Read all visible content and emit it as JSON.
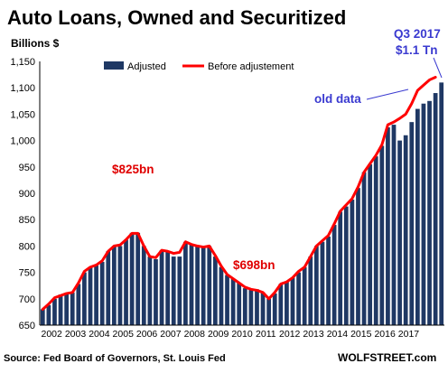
{
  "chart_data": {
    "type": "bar",
    "title": "Auto Loans, Owned and Securitized",
    "ylabel": "Billions $",
    "xlabel": "",
    "ylim": [
      650,
      1150
    ],
    "yticks": [
      650,
      700,
      750,
      800,
      850,
      900,
      950,
      1000,
      1050,
      1100,
      1150
    ],
    "ytick_labels": [
      "650",
      "700",
      "750",
      "800",
      "850",
      "900",
      "950",
      "1,000",
      "1,050",
      "1,100",
      "1,150"
    ],
    "xtick_labels": [
      "2002",
      "2003",
      "2004",
      "2005",
      "2006",
      "2007",
      "2008",
      "2009",
      "2010",
      "2011",
      "2012",
      "2013",
      "2014",
      "2015",
      "2016",
      "2017"
    ],
    "x_start_year": 2002,
    "grid": false,
    "legend_position": "top-center",
    "series": [
      {
        "name": "Adjusted",
        "type": "bar",
        "color": "#1f3864",
        "values": [
          680,
          688,
          700,
          708,
          710,
          712,
          728,
          750,
          760,
          763,
          770,
          790,
          800,
          800,
          812,
          825,
          825,
          800,
          780,
          775,
          792,
          790,
          780,
          780,
          808,
          803,
          800,
          797,
          800,
          780,
          760,
          745,
          738,
          730,
          720,
          718,
          718,
          712,
          700,
          710,
          728,
          732,
          740,
          750,
          760,
          780,
          800,
          808,
          818,
          840,
          865,
          875,
          888,
          910,
          940,
          955,
          970,
          990,
          1025,
          1030,
          1000,
          1010,
          1035,
          1060,
          1070,
          1075,
          1090,
          1110
        ]
      },
      {
        "name": "Before adjustement",
        "type": "line",
        "color": "#ff0000",
        "values": [
          680,
          690,
          702,
          706,
          710,
          712,
          730,
          752,
          760,
          764,
          772,
          790,
          800,
          802,
          812,
          824,
          824,
          800,
          780,
          778,
          792,
          790,
          786,
          788,
          808,
          803,
          800,
          798,
          800,
          782,
          762,
          746,
          738,
          730,
          722,
          718,
          716,
          712,
          700,
          712,
          728,
          732,
          740,
          752,
          760,
          780,
          800,
          810,
          820,
          842,
          866,
          878,
          890,
          912,
          940,
          956,
          972,
          992,
          1030,
          1035,
          1042,
          1050,
          1070,
          1095,
          1105,
          1115,
          1120
        ]
      }
    ],
    "annotations": [
      {
        "text": "$825bn",
        "color": "#e00000"
      },
      {
        "text": "$698bn",
        "color": "#e00000"
      },
      {
        "text": "old data",
        "color": "#3a3ad0"
      },
      {
        "text": "Q3 2017",
        "color": "#3a3ad0"
      },
      {
        "text": "$1.1 Tn",
        "color": "#3a3ad0"
      }
    ]
  },
  "footer": {
    "source": "Source: Fed Board of Governors, St. Louis Fed",
    "brand": "WOLFSTREET.com"
  }
}
